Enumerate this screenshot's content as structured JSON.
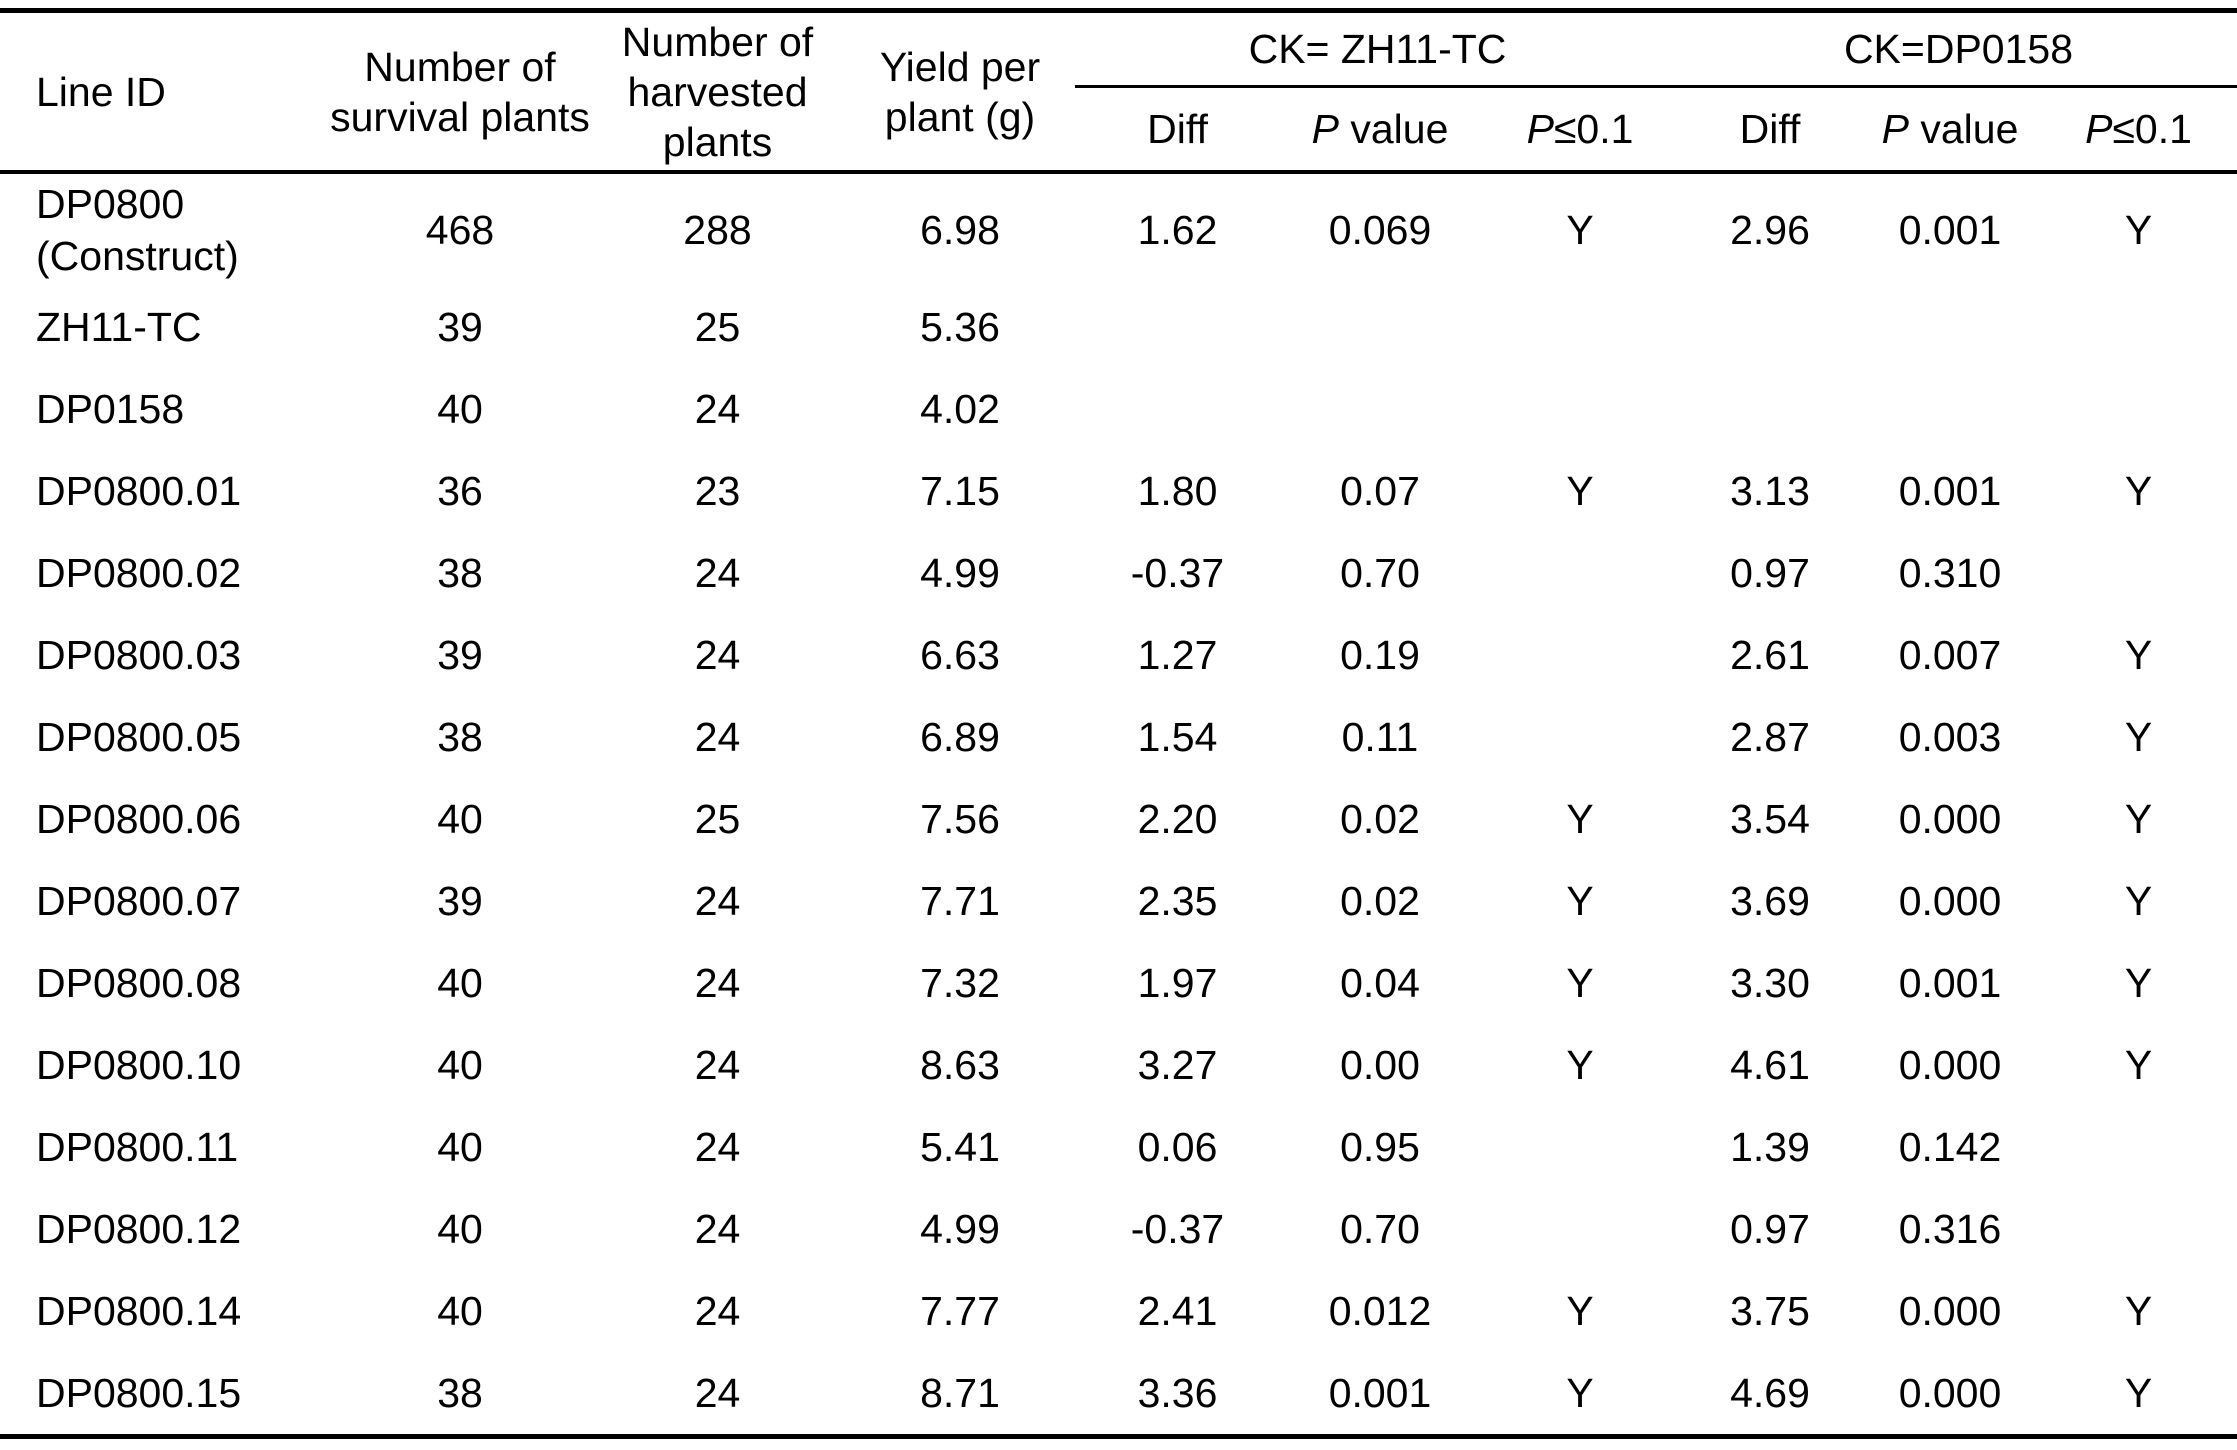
{
  "table": {
    "header": {
      "line_id": "Line ID",
      "survival_plants": "Number of survival plants",
      "harvested_plants": "Number of harvested plants",
      "yield_per_plant": "Yield per plant (g)",
      "group_ck_zh11": "CK= ZH11-TC",
      "group_ck_dp0158": "CK=DP0158",
      "diff": "Diff",
      "p_value_italic": "P",
      "p_value_rest": " value",
      "p_threshold_italic": "P",
      "p_threshold_rest": "≤0.1"
    },
    "rows": [
      {
        "line_id": "DP0800 (Construct)",
        "survival": "468",
        "harvested": "288",
        "yield": "6.98",
        "diff1": "1.62",
        "p1": "0.069",
        "sig1": "Y",
        "diff2": "2.96",
        "p2": "0.001",
        "sig2": "Y"
      },
      {
        "line_id": "ZH11-TC",
        "survival": "39",
        "harvested": "25",
        "yield": "5.36",
        "diff1": "",
        "p1": "",
        "sig1": "",
        "diff2": "",
        "p2": "",
        "sig2": ""
      },
      {
        "line_id": "DP0158",
        "survival": "40",
        "harvested": "24",
        "yield": "4.02",
        "diff1": "",
        "p1": "",
        "sig1": "",
        "diff2": "",
        "p2": "",
        "sig2": ""
      },
      {
        "line_id": "DP0800.01",
        "survival": "36",
        "harvested": "23",
        "yield": "7.15",
        "diff1": "1.80",
        "p1": "0.07",
        "sig1": "Y",
        "diff2": "3.13",
        "p2": "0.001",
        "sig2": "Y"
      },
      {
        "line_id": "DP0800.02",
        "survival": "38",
        "harvested": "24",
        "yield": "4.99",
        "diff1": "-0.37",
        "p1": "0.70",
        "sig1": "",
        "diff2": "0.97",
        "p2": "0.310",
        "sig2": ""
      },
      {
        "line_id": "DP0800.03",
        "survival": "39",
        "harvested": "24",
        "yield": "6.63",
        "diff1": "1.27",
        "p1": "0.19",
        "sig1": "",
        "diff2": "2.61",
        "p2": "0.007",
        "sig2": "Y"
      },
      {
        "line_id": "DP0800.05",
        "survival": "38",
        "harvested": "24",
        "yield": "6.89",
        "diff1": "1.54",
        "p1": "0.11",
        "sig1": "",
        "diff2": "2.87",
        "p2": "0.003",
        "sig2": "Y"
      },
      {
        "line_id": "DP0800.06",
        "survival": "40",
        "harvested": "25",
        "yield": "7.56",
        "diff1": "2.20",
        "p1": "0.02",
        "sig1": "Y",
        "diff2": "3.54",
        "p2": "0.000",
        "sig2": "Y"
      },
      {
        "line_id": "DP0800.07",
        "survival": "39",
        "harvested": "24",
        "yield": "7.71",
        "diff1": "2.35",
        "p1": "0.02",
        "sig1": "Y",
        "diff2": "3.69",
        "p2": "0.000",
        "sig2": "Y"
      },
      {
        "line_id": "DP0800.08",
        "survival": "40",
        "harvested": "24",
        "yield": "7.32",
        "diff1": "1.97",
        "p1": "0.04",
        "sig1": "Y",
        "diff2": "3.30",
        "p2": "0.001",
        "sig2": "Y"
      },
      {
        "line_id": "DP0800.10",
        "survival": "40",
        "harvested": "24",
        "yield": "8.63",
        "diff1": "3.27",
        "p1": "0.00",
        "sig1": "Y",
        "diff2": "4.61",
        "p2": "0.000",
        "sig2": "Y"
      },
      {
        "line_id": "DP0800.11",
        "survival": "40",
        "harvested": "24",
        "yield": "5.41",
        "diff1": "0.06",
        "p1": "0.95",
        "sig1": "",
        "diff2": "1.39",
        "p2": "0.142",
        "sig2": ""
      },
      {
        "line_id": "DP0800.12",
        "survival": "40",
        "harvested": "24",
        "yield": "4.99",
        "diff1": "-0.37",
        "p1": "0.70",
        "sig1": "",
        "diff2": "0.97",
        "p2": "0.316",
        "sig2": ""
      },
      {
        "line_id": "DP0800.14",
        "survival": "40",
        "harvested": "24",
        "yield": "7.77",
        "diff1": "2.41",
        "p1": "0.012",
        "sig1": "Y",
        "diff2": "3.75",
        "p2": "0.000",
        "sig2": "Y"
      },
      {
        "line_id": "DP0800.15",
        "survival": "38",
        "harvested": "24",
        "yield": "8.71",
        "diff1": "3.36",
        "p1": "0.001",
        "sig1": "Y",
        "diff2": "4.69",
        "p2": "0.000",
        "sig2": "Y"
      }
    ]
  }
}
